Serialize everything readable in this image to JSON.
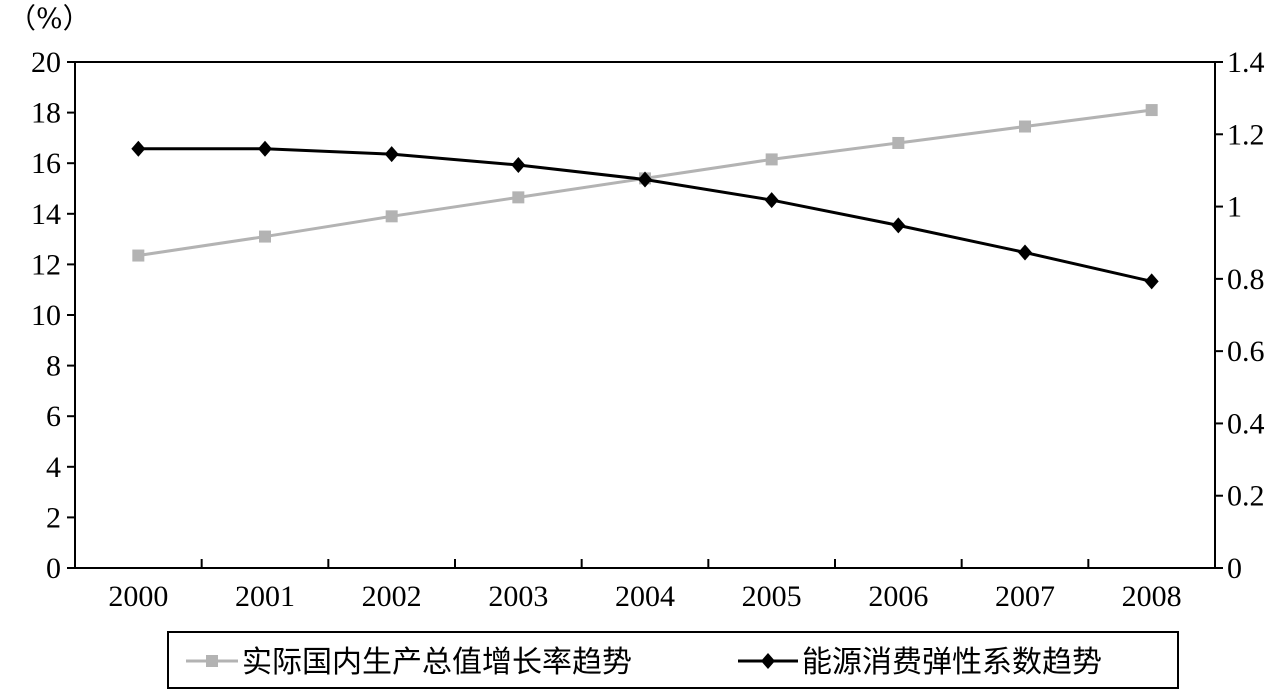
{
  "chart_data": {
    "type": "line",
    "unit_label": "（%）",
    "categories": [
      "2000",
      "2001",
      "2002",
      "2003",
      "2004",
      "2005",
      "2006",
      "2007",
      "2008"
    ],
    "y_left": {
      "ylim": [
        0,
        20
      ],
      "ticks": [
        "0",
        "2",
        "4",
        "6",
        "8",
        "10",
        "12",
        "14",
        "16",
        "18",
        "20"
      ]
    },
    "y_right": {
      "ylim": [
        0,
        1.4
      ],
      "ticks": [
        "0",
        "0.2",
        "0.4",
        "0.6",
        "0.8",
        "1",
        "1.2",
        "1.4"
      ]
    },
    "series": [
      {
        "name": "实际国内生产总值增长率趋势",
        "axis": "left",
        "color": "#b3b3b3",
        "marker": "square",
        "values": [
          12.35,
          13.1,
          13.9,
          14.65,
          15.4,
          16.15,
          16.8,
          17.45,
          18.1
        ]
      },
      {
        "name": "能源消费弹性系数趋势",
        "axis": "right",
        "color": "#000000",
        "marker": "diamond",
        "values": [
          1.16,
          1.16,
          1.145,
          1.115,
          1.075,
          1.018,
          0.948,
          0.873,
          0.793
        ]
      }
    ],
    "grid": false,
    "legend_position": "bottom"
  }
}
